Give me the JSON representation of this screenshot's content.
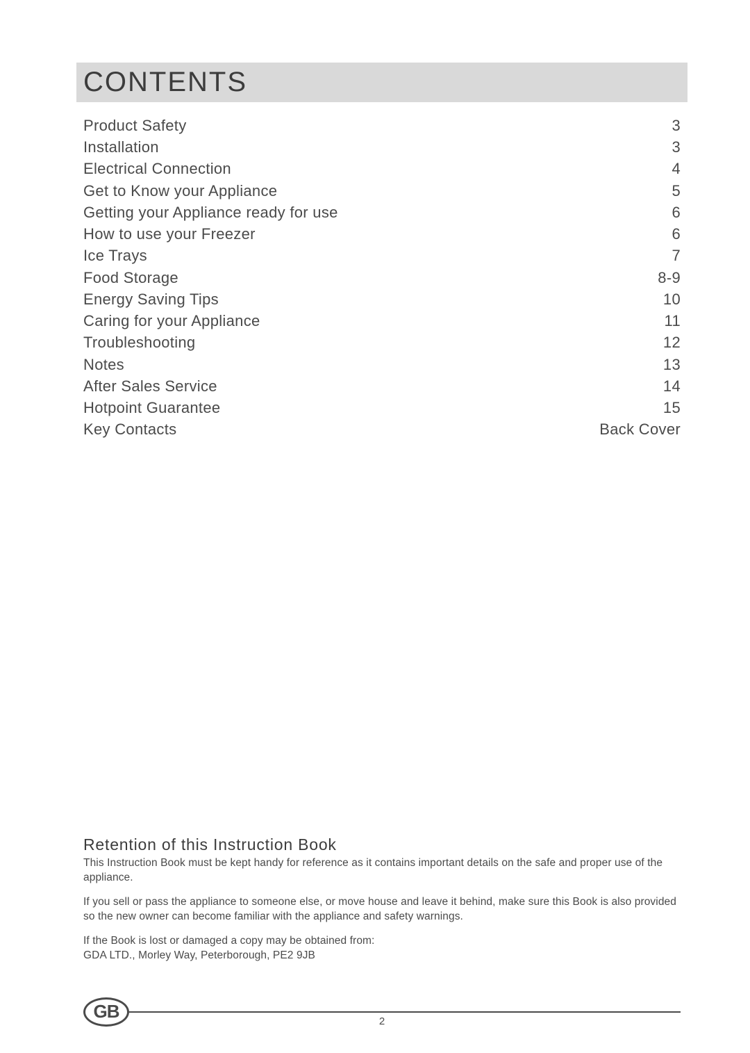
{
  "title": "CONTENTS",
  "toc": [
    {
      "label": "Product Safety",
      "page": "3"
    },
    {
      "label": "Installation",
      "page": "3"
    },
    {
      "label": "Electrical Connection",
      "page": "4"
    },
    {
      "label": "Get to Know your Appliance",
      "page": "5"
    },
    {
      "label": "Getting your Appliance ready for use",
      "page": "6"
    },
    {
      "label": "How to use your Freezer",
      "page": "6"
    },
    {
      "label": "Ice Trays",
      "page": "7"
    },
    {
      "label": "Food Storage",
      "page": "8-9"
    },
    {
      "label": "Energy Saving Tips",
      "page": "10"
    },
    {
      "label": "Caring for your Appliance",
      "page": "11"
    },
    {
      "label": "Troubleshooting",
      "page": "12"
    },
    {
      "label": "Notes",
      "page": "13"
    },
    {
      "label": "After Sales Service",
      "page": "14"
    },
    {
      "label": "Hotpoint Guarantee",
      "page": "15"
    },
    {
      "label": "Key Contacts",
      "page": "Back Cover"
    }
  ],
  "retention": {
    "heading": "Retention of this Instruction Book",
    "p1": "This Instruction Book must be kept handy for reference as it contains important details on the safe and proper use of the appliance.",
    "p2": "If you sell or pass the appliance to someone else, or move house and leave it behind, make sure this Book is also provided so the new owner can become familiar with the appliance and safety warnings.",
    "p3": "If the Book is lost or damaged a copy may be obtained from:",
    "p4": "GDA LTD., Morley Way, Peterborough, PE2 9JB"
  },
  "footer": {
    "badge": "GB",
    "page_number": "2"
  }
}
